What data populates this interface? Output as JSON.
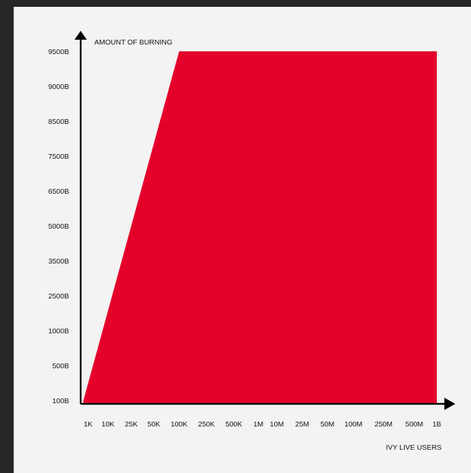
{
  "chart_data": {
    "type": "area",
    "title": "",
    "xlabel": "IVY LIVE USERS",
    "ylabel": "AMOUNT OF BURNING",
    "x_categories": [
      "1K",
      "10K",
      "25K",
      "50K",
      "100K",
      "250K",
      "500K",
      "1M",
      "10M",
      "25M",
      "50M",
      "100M",
      "250M",
      "500M",
      "1B"
    ],
    "y_categories": [
      "100B",
      "500B",
      "1000B",
      "2500B",
      "3500B",
      "5000B",
      "6500B",
      "7500B",
      "8500B",
      "9000B",
      "9500B"
    ],
    "series": [
      {
        "x": [
          "1K",
          "100K",
          "1B"
        ],
        "y": [
          "100B",
          "9500B",
          "9500B"
        ]
      }
    ],
    "color": "#e4002b",
    "grid": false,
    "legend": "none"
  }
}
